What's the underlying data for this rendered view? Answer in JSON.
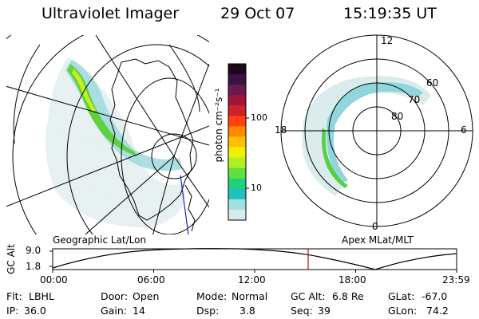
{
  "header": {
    "instrument": "Ultraviolet Imager",
    "date": "29 Oct 07",
    "time": "15:19:35 UT"
  },
  "colorbar": {
    "unit_label": "photon cm⁻²s⁻¹",
    "ticks": [
      "100",
      "10"
    ],
    "colors": [
      "#1a0a1a",
      "#3a1440",
      "#6a1a50",
      "#a01638",
      "#d02028",
      "#ff4010",
      "#ff8a00",
      "#ffc000",
      "#f0f000",
      "#b0f020",
      "#60e040",
      "#20d080",
      "#20c0c0",
      "#a0e0e0",
      "#d8ecec"
    ]
  },
  "geo_panel": {
    "label": "Geographic Lat/Lon"
  },
  "polar_panel": {
    "label": "Apex MLat/MLT",
    "mlt_labels": [
      "12",
      "18",
      "6",
      "0"
    ],
    "lat_labels": [
      "60",
      "70",
      "80"
    ]
  },
  "altitude_plot": {
    "ylabel": "GC Alt",
    "yticks": [
      "9.0",
      "1.8"
    ],
    "xticks": [
      "00:00",
      "06:00",
      "12:00",
      "18:00",
      "23:59"
    ],
    "current_time_color": "#cc0000"
  },
  "status": {
    "flt": {
      "label": "Flt:",
      "value": "LBHL"
    },
    "ip": {
      "label": "IP:",
      "value": "36.0"
    },
    "door": {
      "label": "Door:",
      "value": "Open"
    },
    "gain": {
      "label": "Gain:",
      "value": "14"
    },
    "mode": {
      "label": "Mode:",
      "value": "Normal"
    },
    "dsp": {
      "label": "Dsp:",
      "value": "3.8"
    },
    "gcalt": {
      "label": "GC Alt:",
      "value": "6.8 Re"
    },
    "seq": {
      "label": "Seq:",
      "value": "39"
    },
    "glat": {
      "label": "GLat:",
      "value": "-67.0"
    },
    "glon": {
      "label": "GLon:",
      "value": "74.2"
    }
  }
}
